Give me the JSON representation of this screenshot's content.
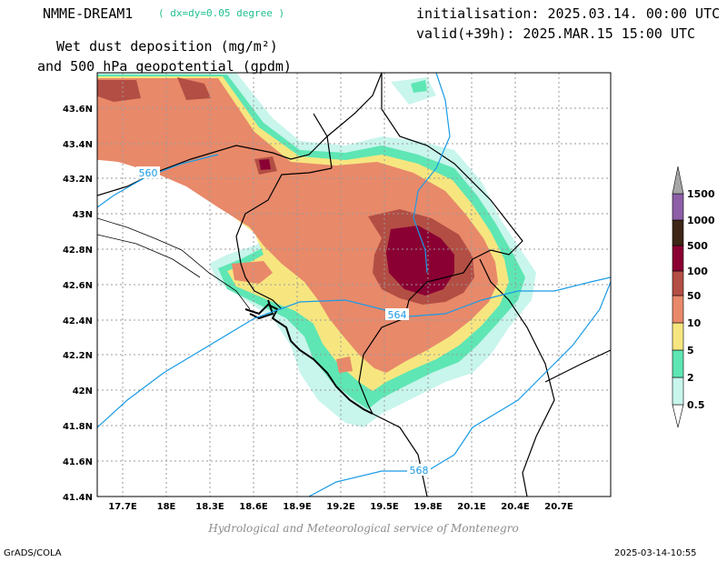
{
  "header": {
    "model": "NMME-DREAM1",
    "resolution": "( dx=dy=0.05 degree )",
    "variable_line1": "Wet dust deposition (mg/m²)",
    "variable_line2": "and 500 hPa geopotential (gpdm)",
    "init": "initialisation: 2025.03.14. 00:00 UTC",
    "valid": "valid(+39h): 2025.MAR.15 15:00 UTC"
  },
  "map": {
    "lon_ticks": [
      "17.7E",
      "18E",
      "18.3E",
      "18.6E",
      "18.9E",
      "19.2E",
      "19.5E",
      "19.8E",
      "20.1E",
      "20.4E",
      "20.7E"
    ],
    "lat_ticks": [
      "43.6N",
      "43.4N",
      "43.2N",
      "43N",
      "42.8N",
      "42.6N",
      "42.4N",
      "42.2N",
      "42N",
      "41.8N",
      "41.6N",
      "41.4N"
    ],
    "contour_labels": [
      "560",
      "564",
      "568"
    ],
    "contour_color": "#1a9be6"
  },
  "legend": {
    "levels": [
      "0.5",
      "2",
      "5",
      "10",
      "50",
      "100",
      "500",
      "1000",
      "1500"
    ],
    "colors": [
      "#c8f5ec",
      "#5ee6b4",
      "#f7e680",
      "#e8896a",
      "#b34e44",
      "#8a0033",
      "#3d2616",
      "#8c5fa6",
      "#a6a6a6"
    ]
  },
  "footer": {
    "credit": "Hydrological and Meteorological service of Montenegro",
    "software": "GrADS/COLA",
    "timestamp": "2025-03-14-10:55"
  }
}
